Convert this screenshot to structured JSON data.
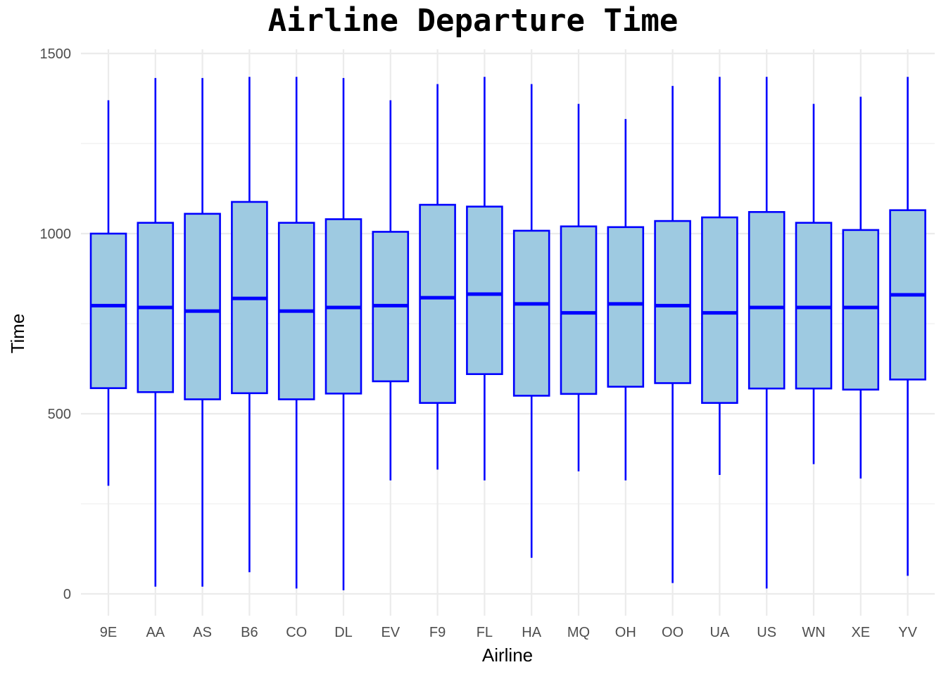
{
  "chart_data": {
    "type": "box",
    "title": "Airline Departure Time",
    "xlabel": "Airline",
    "ylabel": "Time",
    "ylim": [
      -60,
      1555
    ],
    "yticks": [
      0,
      500,
      1000,
      1500
    ],
    "ytick_labels": [
      "0",
      "500",
      "1000",
      "1500"
    ],
    "grid": true,
    "legend": "none",
    "colors": {
      "box_fill": "#9ECAE1",
      "box_stroke": "#0000FF",
      "grid": "#EBEBEB"
    },
    "categories": [
      "9E",
      "AA",
      "AS",
      "B6",
      "CO",
      "DL",
      "EV",
      "F9",
      "FL",
      "HA",
      "MQ",
      "OH",
      "OO",
      "UA",
      "US",
      "WN",
      "XE",
      "YV"
    ],
    "boxes": [
      {
        "category": "9E",
        "whisker_low": 300,
        "q1": 571,
        "median": 800,
        "q3": 1000,
        "whisker_high": 1370
      },
      {
        "category": "AA",
        "whisker_low": 20,
        "q1": 560,
        "median": 795,
        "q3": 1030,
        "whisker_high": 1432
      },
      {
        "category": "AS",
        "whisker_low": 20,
        "q1": 540,
        "median": 785,
        "q3": 1055,
        "whisker_high": 1432
      },
      {
        "category": "B6",
        "whisker_low": 60,
        "q1": 557,
        "median": 820,
        "q3": 1088,
        "whisker_high": 1435
      },
      {
        "category": "CO",
        "whisker_low": 15,
        "q1": 540,
        "median": 785,
        "q3": 1030,
        "whisker_high": 1435
      },
      {
        "category": "DL",
        "whisker_low": 10,
        "q1": 556,
        "median": 795,
        "q3": 1040,
        "whisker_high": 1432
      },
      {
        "category": "EV",
        "whisker_low": 315,
        "q1": 590,
        "median": 800,
        "q3": 1005,
        "whisker_high": 1370
      },
      {
        "category": "F9",
        "whisker_low": 345,
        "q1": 530,
        "median": 822,
        "q3": 1080,
        "whisker_high": 1415
      },
      {
        "category": "FL",
        "whisker_low": 315,
        "q1": 610,
        "median": 832,
        "q3": 1075,
        "whisker_high": 1435
      },
      {
        "category": "HA",
        "whisker_low": 100,
        "q1": 550,
        "median": 805,
        "q3": 1008,
        "whisker_high": 1415
      },
      {
        "category": "MQ",
        "whisker_low": 340,
        "q1": 555,
        "median": 780,
        "q3": 1020,
        "whisker_high": 1360
      },
      {
        "category": "OH",
        "whisker_low": 315,
        "q1": 575,
        "median": 805,
        "q3": 1018,
        "whisker_high": 1318
      },
      {
        "category": "OO",
        "whisker_low": 30,
        "q1": 585,
        "median": 800,
        "q3": 1035,
        "whisker_high": 1410
      },
      {
        "category": "UA",
        "whisker_low": 330,
        "q1": 530,
        "median": 780,
        "q3": 1045,
        "whisker_high": 1435
      },
      {
        "category": "US",
        "whisker_low": 15,
        "q1": 570,
        "median": 795,
        "q3": 1060,
        "whisker_high": 1435
      },
      {
        "category": "WN",
        "whisker_low": 360,
        "q1": 570,
        "median": 795,
        "q3": 1030,
        "whisker_high": 1360
      },
      {
        "category": "XE",
        "whisker_low": 320,
        "q1": 567,
        "median": 795,
        "q3": 1010,
        "whisker_high": 1380
      },
      {
        "category": "YV",
        "whisker_low": 50,
        "q1": 595,
        "median": 830,
        "q3": 1065,
        "whisker_high": 1435
      }
    ]
  }
}
